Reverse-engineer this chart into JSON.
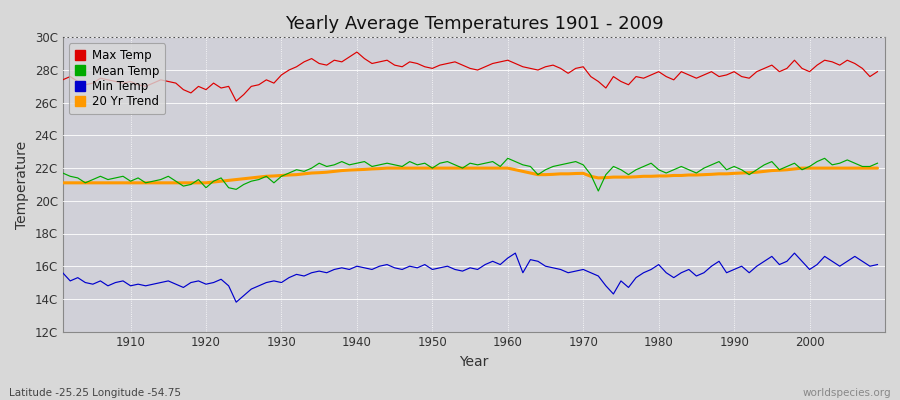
{
  "title": "Yearly Average Temperatures 1901 - 2009",
  "xlabel": "Year",
  "ylabel": "Temperature",
  "years": [
    1901,
    1902,
    1903,
    1904,
    1905,
    1906,
    1907,
    1908,
    1909,
    1910,
    1911,
    1912,
    1913,
    1914,
    1915,
    1916,
    1917,
    1918,
    1919,
    1920,
    1921,
    1922,
    1923,
    1924,
    1925,
    1926,
    1927,
    1928,
    1929,
    1930,
    1931,
    1932,
    1933,
    1934,
    1935,
    1936,
    1937,
    1938,
    1939,
    1940,
    1941,
    1942,
    1943,
    1944,
    1945,
    1946,
    1947,
    1948,
    1949,
    1950,
    1951,
    1952,
    1953,
    1954,
    1955,
    1956,
    1957,
    1958,
    1959,
    1960,
    1961,
    1962,
    1963,
    1964,
    1965,
    1966,
    1967,
    1968,
    1969,
    1970,
    1971,
    1972,
    1973,
    1974,
    1975,
    1976,
    1977,
    1978,
    1979,
    1980,
    1981,
    1982,
    1983,
    1984,
    1985,
    1986,
    1987,
    1988,
    1989,
    1990,
    1991,
    1992,
    1993,
    1994,
    1995,
    1996,
    1997,
    1998,
    1999,
    2000,
    2001,
    2002,
    2003,
    2004,
    2005,
    2006,
    2007,
    2008,
    2009
  ],
  "max_temp": [
    27.4,
    27.6,
    27.3,
    27.1,
    27.2,
    27.5,
    27.4,
    27.3,
    27.2,
    27.3,
    27.1,
    27.0,
    27.2,
    27.4,
    27.3,
    27.2,
    26.8,
    26.6,
    27.0,
    26.8,
    27.2,
    26.9,
    27.0,
    26.1,
    26.5,
    27.0,
    27.1,
    27.4,
    27.2,
    27.7,
    28.0,
    28.2,
    28.5,
    28.7,
    28.4,
    28.3,
    28.6,
    28.5,
    28.8,
    29.1,
    28.7,
    28.4,
    28.5,
    28.6,
    28.3,
    28.2,
    28.5,
    28.4,
    28.2,
    28.1,
    28.3,
    28.4,
    28.5,
    28.3,
    28.1,
    28.0,
    28.2,
    28.4,
    28.5,
    28.6,
    28.4,
    28.2,
    28.1,
    28.0,
    28.2,
    28.3,
    28.1,
    27.8,
    28.1,
    28.2,
    27.6,
    27.3,
    26.9,
    27.6,
    27.3,
    27.1,
    27.6,
    27.5,
    27.7,
    27.9,
    27.6,
    27.4,
    27.9,
    27.7,
    27.5,
    27.7,
    27.9,
    27.6,
    27.7,
    27.9,
    27.6,
    27.5,
    27.9,
    28.1,
    28.3,
    27.9,
    28.1,
    28.6,
    28.1,
    27.9,
    28.3,
    28.6,
    28.5,
    28.3,
    28.6,
    28.4,
    28.1,
    27.6,
    27.9
  ],
  "mean_temp": [
    21.7,
    21.5,
    21.4,
    21.1,
    21.3,
    21.5,
    21.3,
    21.4,
    21.5,
    21.2,
    21.4,
    21.1,
    21.2,
    21.3,
    21.5,
    21.2,
    20.9,
    21.0,
    21.3,
    20.8,
    21.2,
    21.4,
    20.8,
    20.7,
    21.0,
    21.2,
    21.3,
    21.5,
    21.1,
    21.5,
    21.7,
    21.9,
    21.8,
    22.0,
    22.3,
    22.1,
    22.2,
    22.4,
    22.2,
    22.3,
    22.4,
    22.1,
    22.2,
    22.3,
    22.2,
    22.1,
    22.4,
    22.2,
    22.3,
    22.0,
    22.3,
    22.4,
    22.2,
    22.0,
    22.3,
    22.2,
    22.3,
    22.4,
    22.1,
    22.6,
    22.4,
    22.2,
    22.1,
    21.6,
    21.9,
    22.1,
    22.2,
    22.3,
    22.4,
    22.2,
    21.6,
    20.6,
    21.6,
    22.1,
    21.9,
    21.6,
    21.9,
    22.1,
    22.3,
    21.9,
    21.7,
    21.9,
    22.1,
    21.9,
    21.7,
    22.0,
    22.2,
    22.4,
    21.9,
    22.1,
    21.9,
    21.6,
    21.9,
    22.2,
    22.4,
    21.9,
    22.1,
    22.3,
    21.9,
    22.1,
    22.4,
    22.6,
    22.2,
    22.3,
    22.5,
    22.3,
    22.1,
    22.1,
    22.3
  ],
  "min_temp": [
    15.6,
    15.1,
    15.3,
    15.0,
    14.9,
    15.1,
    14.8,
    15.0,
    15.1,
    14.8,
    14.9,
    14.8,
    14.9,
    15.0,
    15.1,
    14.9,
    14.7,
    15.0,
    15.1,
    14.9,
    15.0,
    15.2,
    14.8,
    13.8,
    14.2,
    14.6,
    14.8,
    15.0,
    15.1,
    15.0,
    15.3,
    15.5,
    15.4,
    15.6,
    15.7,
    15.6,
    15.8,
    15.9,
    15.8,
    16.0,
    15.9,
    15.8,
    16.0,
    16.1,
    15.9,
    15.8,
    16.0,
    15.9,
    16.1,
    15.8,
    15.9,
    16.0,
    15.8,
    15.7,
    15.9,
    15.8,
    16.1,
    16.3,
    16.1,
    16.5,
    16.8,
    15.6,
    16.4,
    16.3,
    16.0,
    15.9,
    15.8,
    15.6,
    15.7,
    15.8,
    15.6,
    15.4,
    14.8,
    14.3,
    15.1,
    14.7,
    15.3,
    15.6,
    15.8,
    16.1,
    15.6,
    15.3,
    15.6,
    15.8,
    15.4,
    15.6,
    16.0,
    16.3,
    15.6,
    15.8,
    16.0,
    15.6,
    16.0,
    16.3,
    16.6,
    16.1,
    16.3,
    16.8,
    16.3,
    15.8,
    16.1,
    16.6,
    16.3,
    16.0,
    16.3,
    16.6,
    16.3,
    16.0,
    16.1
  ],
  "trend": [
    21.1,
    21.1,
    21.1,
    21.1,
    21.1,
    21.1,
    21.1,
    21.1,
    21.1,
    21.1,
    21.1,
    21.1,
    21.1,
    21.1,
    21.1,
    21.1,
    21.1,
    21.1,
    21.1,
    21.1,
    21.15,
    21.2,
    21.25,
    21.3,
    21.35,
    21.4,
    21.45,
    21.5,
    21.52,
    21.55,
    21.58,
    21.6,
    21.65,
    21.7,
    21.72,
    21.75,
    21.8,
    21.85,
    21.88,
    21.9,
    21.92,
    21.95,
    21.97,
    22.0,
    22.0,
    22.0,
    22.0,
    22.0,
    22.0,
    22.0,
    22.0,
    22.0,
    22.0,
    22.0,
    22.0,
    22.0,
    22.0,
    22.0,
    22.0,
    22.0,
    21.9,
    21.8,
    21.7,
    21.6,
    21.6,
    21.62,
    21.65,
    21.65,
    21.67,
    21.68,
    21.5,
    21.4,
    21.42,
    21.45,
    21.45,
    21.45,
    21.47,
    21.5,
    21.5,
    21.52,
    21.52,
    21.55,
    21.55,
    21.58,
    21.58,
    21.6,
    21.62,
    21.65,
    21.65,
    21.68,
    21.7,
    21.72,
    21.75,
    21.8,
    21.85,
    21.87,
    21.9,
    21.95,
    22.0,
    22.0,
    22.0,
    22.0,
    22.0,
    22.0,
    22.0,
    22.0,
    22.0,
    22.0,
    22.0
  ],
  "ylim": [
    12,
    30
  ],
  "yticks": [
    12,
    14,
    16,
    18,
    20,
    22,
    24,
    26,
    28,
    30
  ],
  "ytick_labels": [
    "12C",
    "14C",
    "16C",
    "18C",
    "20C",
    "22C",
    "24C",
    "26C",
    "28C",
    "30C"
  ],
  "dotted_line_y": 30,
  "bg_color": "#d8d8d8",
  "plot_bg_color": "#d0d0d8",
  "max_color": "#dd0000",
  "mean_color": "#00aa00",
  "min_color": "#0000cc",
  "trend_color": "#ff9900",
  "grid_color": "#ffffff",
  "footer_left": "Latitude -25.25 Longitude -54.75",
  "footer_right": "worldspecies.org",
  "legend_labels": [
    "Max Temp",
    "Mean Temp",
    "Min Temp",
    "20 Yr Trend"
  ]
}
